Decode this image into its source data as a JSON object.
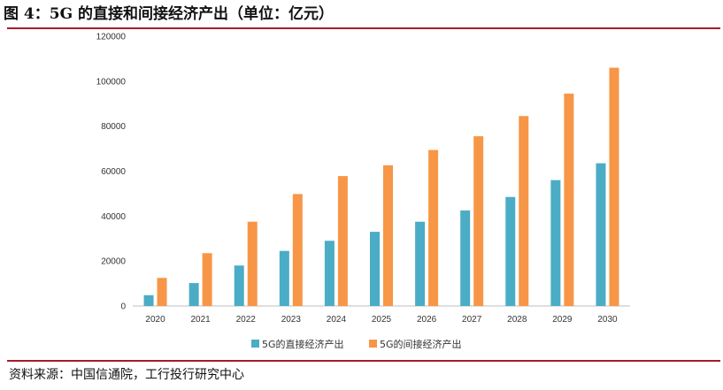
{
  "header": {
    "title": "图 4：5G 的直接和间接经济产出（单位：亿元）"
  },
  "footer": {
    "source": "资料来源：中国信通院，工行投行研究中心"
  },
  "colors": {
    "rule": "#a51c2a",
    "series_direct": "#4bacc6",
    "series_indirect": "#f79646",
    "axis": "#bfbfbf"
  },
  "chart_data": {
    "type": "bar",
    "categories": [
      "2020",
      "2021",
      "2022",
      "2023",
      "2024",
      "2025",
      "2026",
      "2027",
      "2028",
      "2029",
      "2030"
    ],
    "series": [
      {
        "name": "5G的直接经济产出",
        "values": [
          4800,
          10200,
          18000,
          24500,
          29000,
          33000,
          37500,
          42500,
          48500,
          56000,
          63500
        ]
      },
      {
        "name": "5G的间接经济产出",
        "values": [
          12500,
          23500,
          37500,
          49800,
          57800,
          62600,
          69400,
          75500,
          84500,
          94500,
          106000
        ]
      }
    ],
    "y_ticks": [
      "0",
      "20000",
      "40000",
      "60000",
      "80000",
      "100000",
      "120000"
    ],
    "ylim": [
      0,
      120000
    ],
    "grid": false,
    "legend_position": "bottom-center"
  }
}
